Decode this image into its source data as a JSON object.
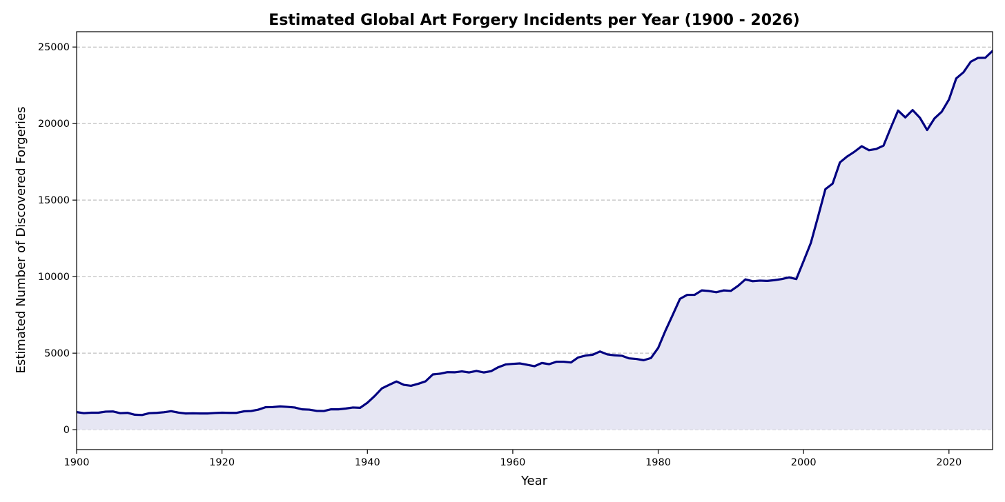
{
  "chart_data": {
    "type": "area",
    "title": "Estimated Global Art Forgery Incidents per Year (1900 - 2026)",
    "xlabel": "Year",
    "ylabel": "Estimated Number of Discovered Forgeries",
    "xlim": [
      1900,
      2026
    ],
    "ylim": [
      -1300,
      26000
    ],
    "xticks": [
      1900,
      1920,
      1940,
      1960,
      1980,
      2000,
      2020
    ],
    "yticks": [
      0,
      5000,
      10000,
      15000,
      20000,
      25000
    ],
    "grid": "horizontal-dashed",
    "line_color": "#000080",
    "fill_color": "#e6e6f3",
    "x": [
      1900,
      1901,
      1902,
      1903,
      1904,
      1905,
      1906,
      1907,
      1908,
      1909,
      1910,
      1911,
      1912,
      1913,
      1914,
      1915,
      1916,
      1917,
      1918,
      1919,
      1920,
      1921,
      1922,
      1923,
      1924,
      1925,
      1926,
      1927,
      1928,
      1929,
      1930,
      1931,
      1932,
      1933,
      1934,
      1935,
      1936,
      1937,
      1938,
      1939,
      1940,
      1941,
      1942,
      1943,
      1944,
      1945,
      1946,
      1947,
      1948,
      1949,
      1950,
      1951,
      1952,
      1953,
      1954,
      1955,
      1956,
      1957,
      1958,
      1959,
      1960,
      1961,
      1962,
      1963,
      1964,
      1965,
      1966,
      1967,
      1968,
      1969,
      1970,
      1971,
      1972,
      1973,
      1974,
      1975,
      1976,
      1977,
      1978,
      1979,
      1980,
      1981,
      1982,
      1983,
      1984,
      1985,
      1986,
      1987,
      1988,
      1989,
      1990,
      1991,
      1992,
      1993,
      1994,
      1995,
      1996,
      1997,
      1998,
      1999,
      2000,
      2001,
      2002,
      2003,
      2004,
      2005,
      2006,
      2007,
      2008,
      2009,
      2010,
      2011,
      2012,
      2013,
      2014,
      2015,
      2016,
      2017,
      2018,
      2019,
      2020,
      2021,
      2022,
      2023,
      2024,
      2025,
      2026
    ],
    "values": [
      1150,
      1080,
      1110,
      1110,
      1180,
      1190,
      1080,
      1100,
      980,
      960,
      1080,
      1100,
      1140,
      1210,
      1120,
      1060,
      1070,
      1060,
      1060,
      1090,
      1110,
      1100,
      1100,
      1200,
      1220,
      1310,
      1470,
      1480,
      1520,
      1490,
      1450,
      1330,
      1310,
      1230,
      1220,
      1330,
      1330,
      1380,
      1450,
      1430,
      1760,
      2200,
      2700,
      2930,
      3150,
      2930,
      2870,
      3000,
      3160,
      3610,
      3660,
      3760,
      3750,
      3810,
      3740,
      3840,
      3740,
      3820,
      4080,
      4260,
      4300,
      4330,
      4240,
      4150,
      4360,
      4280,
      4440,
      4440,
      4390,
      4720,
      4840,
      4900,
      5110,
      4920,
      4860,
      4830,
      4660,
      4620,
      4540,
      4680,
      5340,
      6470,
      7500,
      8550,
      8810,
      8810,
      9100,
      9060,
      8980,
      9100,
      9070,
      9400,
      9820,
      9700,
      9740,
      9720,
      9770,
      9840,
      9950,
      9840,
      11010,
      12200,
      13930,
      15710,
      16080,
      17460,
      17850,
      18160,
      18520,
      18260,
      18340,
      18560,
      19730,
      20850,
      20400,
      20880,
      20380,
      19580,
      20330,
      20770,
      21570,
      22950,
      23350,
      24040,
      24290,
      24300,
      24750
    ]
  }
}
